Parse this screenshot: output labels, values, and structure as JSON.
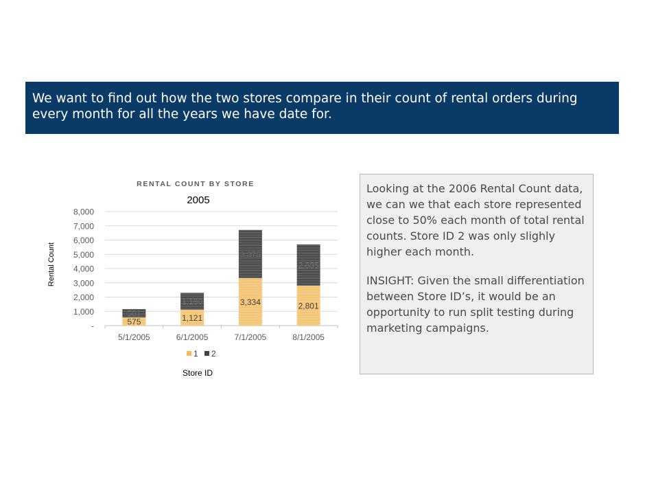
{
  "banner": {
    "text": "We want to find out how the two stores compare in their count of rental orders during every month for all the years we have date for."
  },
  "insight": {
    "paragraph1": "Looking at the 2006 Rental Count data, we can we that each store represented close to 50% each month of total rental counts. Store ID 2 was only slighly higher each month.",
    "paragraph2": "INSIGHT: Given the small differentiation between Store ID’s, it would be an opportunity to run split testing during marketing campaigns."
  },
  "chart_data": {
    "type": "bar",
    "stacked": true,
    "title": "RENTAL COUNT BY STORE",
    "subtitle": "2005",
    "ylabel": "Rental Count",
    "xlabel": "Store ID",
    "categories": [
      "5/1/2005",
      "6/1/2005",
      "7/1/2005",
      "8/1/2005"
    ],
    "ylim": [
      0,
      8000
    ],
    "y_ticks": [
      "-",
      "1,000",
      "2,000",
      "3,000",
      "4,000",
      "5,000",
      "6,000",
      "7,000",
      "8,000"
    ],
    "grid": true,
    "legend_position": "bottom",
    "series": [
      {
        "name": "1",
        "color": "#f6b95a",
        "values": [
          575,
          1121,
          3334,
          2801
        ],
        "labels": [
          "575",
          "1,121",
          "3,334",
          "2,801"
        ]
      },
      {
        "name": "2",
        "color": "#444444",
        "values": [
          581,
          1180,
          3375,
          2885
        ],
        "labels": [
          "581",
          "1,180",
          "3,375",
          "2,885"
        ]
      }
    ]
  }
}
